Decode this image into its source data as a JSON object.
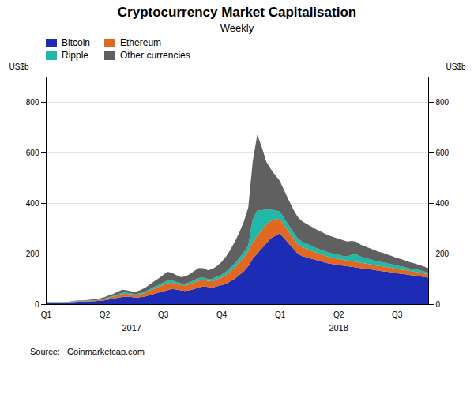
{
  "chart_data": {
    "type": "area",
    "stacked": true,
    "title": "Cryptocurrency Market Capitalisation",
    "subtitle": "Weekly",
    "ylabel": "US$b",
    "y2label": "US$b",
    "source": "Source:   Coinmarketcap.com",
    "x": [
      0,
      1,
      2,
      3,
      4,
      5,
      6,
      7,
      8,
      9,
      10,
      11,
      12,
      13,
      14,
      15,
      16,
      17,
      18,
      19,
      20,
      21,
      22,
      23,
      24,
      25,
      26,
      27,
      28,
      29,
      30,
      31,
      32,
      33,
      34,
      35,
      36,
      37,
      38,
      39,
      40,
      41,
      42,
      43,
      44,
      45,
      46,
      47,
      48,
      49,
      50,
      51,
      52,
      53,
      54,
      55,
      56,
      57,
      58,
      59,
      60,
      61,
      62,
      63,
      64,
      65,
      66,
      67,
      68,
      69,
      70,
      71,
      72,
      73,
      74,
      75,
      76,
      77,
      78,
      79,
      80,
      81,
      82,
      83,
      84,
      85
    ],
    "xlim": [
      0,
      85
    ],
    "xticks": [
      {
        "value": 0,
        "label": "Q1"
      },
      {
        "value": 13,
        "label": "Q2"
      },
      {
        "value": 26,
        "label": "Q3"
      },
      {
        "value": 39,
        "label": "Q4"
      },
      {
        "value": 52,
        "label": "Q1"
      },
      {
        "value": 65,
        "label": "Q2"
      },
      {
        "value": 78,
        "label": "Q3"
      }
    ],
    "ylim": [
      0,
      900
    ],
    "yticks": [
      0,
      200,
      400,
      600,
      800
    ],
    "y2lim": [
      0,
      900
    ],
    "y2ticks": [
      0,
      200,
      400,
      600,
      800
    ],
    "grid": true,
    "legend": "upper left",
    "annotations": [
      {
        "text": "2017",
        "x": 19
      },
      {
        "text": "2018",
        "x": 65
      }
    ],
    "series": [
      {
        "name": "Bitcoin",
        "color": "#1c2cb5",
        "values": [
          5,
          5,
          5,
          6,
          6,
          7,
          8,
          9,
          10,
          10,
          11,
          12,
          13,
          15,
          18,
          22,
          25,
          28,
          30,
          28,
          25,
          27,
          30,
          35,
          40,
          45,
          50,
          55,
          60,
          58,
          55,
          52,
          55,
          60,
          65,
          70,
          68,
          65,
          70,
          75,
          80,
          90,
          100,
          115,
          130,
          150,
          180,
          200,
          220,
          240,
          260,
          270,
          280,
          260,
          240,
          220,
          200,
          190,
          185,
          180,
          175,
          170,
          165,
          160,
          158,
          155,
          152,
          150,
          148,
          145,
          142,
          140,
          138,
          135,
          132,
          130,
          128,
          125,
          122,
          120,
          118,
          115,
          113,
          110,
          108,
          105
        ]
      },
      {
        "name": "Ethereum",
        "color": "#e06820",
        "values": [
          1,
          1,
          1,
          1,
          1,
          1,
          2,
          2,
          2,
          2,
          3,
          3,
          4,
          5,
          7,
          8,
          10,
          12,
          11,
          10,
          10,
          12,
          14,
          17,
          20,
          22,
          25,
          28,
          25,
          22,
          20,
          22,
          24,
          26,
          28,
          26,
          24,
          26,
          28,
          30,
          35,
          40,
          45,
          50,
          55,
          60,
          65,
          70,
          72,
          74,
          70,
          65,
          58,
          52,
          47,
          42,
          38,
          36,
          34,
          32,
          30,
          28,
          27,
          26,
          25,
          24,
          24,
          23,
          22,
          22,
          21,
          21,
          20,
          20,
          19,
          19,
          18,
          18,
          17,
          17,
          16,
          16,
          15,
          15,
          14,
          13
        ]
      },
      {
        "name": "Ripple",
        "color": "#20b8a8",
        "values": [
          0.5,
          0.5,
          0.5,
          0.5,
          0.5,
          0.5,
          1,
          1,
          1,
          1,
          1,
          1,
          1.5,
          2,
          2.5,
          3,
          4,
          5,
          4,
          4,
          4,
          4.5,
          5,
          6,
          7,
          8,
          9,
          10,
          9,
          8,
          7,
          7.5,
          8,
          9,
          10,
          9,
          8,
          9,
          10,
          11,
          12,
          14,
          16,
          18,
          20,
          22,
          90,
          100,
          80,
          60,
          45,
          35,
          30,
          27,
          25,
          23,
          22,
          21,
          20,
          19,
          18,
          18,
          17,
          17,
          16,
          16,
          15,
          15,
          25,
          30,
          25,
          22,
          20,
          18,
          17,
          16,
          15,
          14,
          13,
          12,
          11,
          10,
          10,
          9,
          8,
          7
        ]
      },
      {
        "name": "Other currencies",
        "color": "#606060",
        "values": [
          1,
          1,
          1,
          1,
          1,
          1,
          1.5,
          2,
          2,
          2.5,
          3,
          3.5,
          4,
          5,
          7,
          8,
          10,
          12,
          10,
          9,
          10,
          12,
          15,
          18,
          22,
          26,
          30,
          35,
          30,
          27,
          25,
          28,
          32,
          36,
          40,
          37,
          34,
          38,
          42,
          50,
          60,
          70,
          85,
          100,
          120,
          150,
          230,
          300,
          250,
          190,
          160,
          140,
          120,
          110,
          100,
          90,
          85,
          80,
          78,
          76,
          74,
          72,
          70,
          68,
          66,
          64,
          62,
          60,
          55,
          50,
          47,
          45,
          43,
          41,
          39,
          37,
          35,
          33,
          31,
          29,
          27,
          25,
          23,
          21,
          19,
          17
        ]
      }
    ]
  }
}
